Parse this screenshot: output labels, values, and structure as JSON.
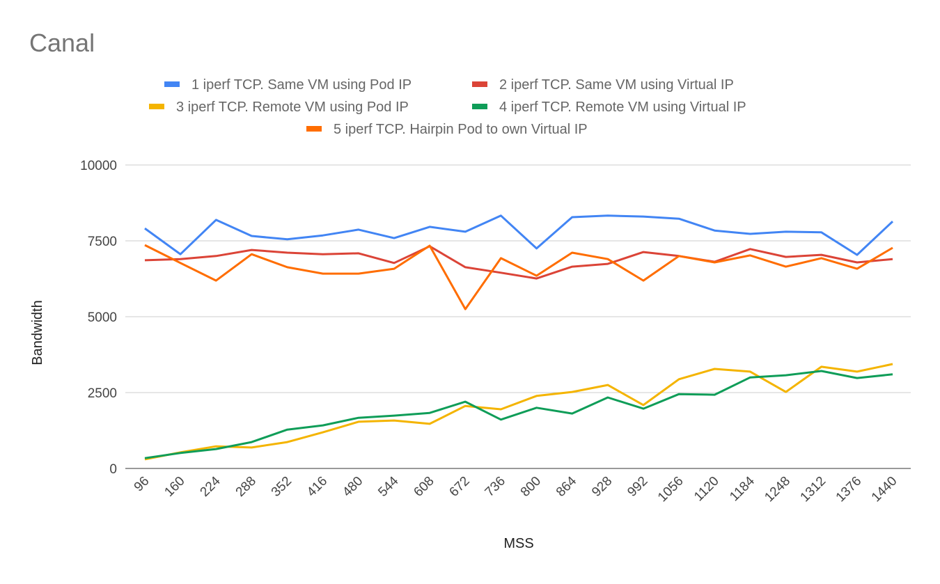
{
  "chart_data": {
    "type": "line",
    "title": "Canal",
    "xlabel": "MSS",
    "ylabel": "Bandwidth",
    "ylim": [
      0,
      10000
    ],
    "yticks": [
      0,
      2500,
      5000,
      7500,
      10000
    ],
    "grid": true,
    "legend_position": "top",
    "x": [
      96,
      160,
      224,
      288,
      352,
      416,
      480,
      544,
      608,
      672,
      736,
      800,
      864,
      928,
      992,
      1056,
      1120,
      1184,
      1248,
      1312,
      1376,
      1440
    ],
    "series": [
      {
        "name": "1 iperf TCP. Same VM using Pod IP",
        "color": "#4285F4",
        "values": [
          7910,
          7060,
          8190,
          7660,
          7550,
          7680,
          7870,
          7590,
          7960,
          7800,
          8330,
          7250,
          8280,
          8330,
          8300,
          8230,
          7840,
          7730,
          7800,
          7780,
          7040,
          8140
        ]
      },
      {
        "name": "2 iperf TCP. Same VM using Virtual IP",
        "color": "#DB4437",
        "values": [
          6860,
          6900,
          7000,
          7200,
          7110,
          7060,
          7090,
          6770,
          7320,
          6630,
          6450,
          6260,
          6650,
          6740,
          7130,
          7000,
          6810,
          7230,
          6970,
          7040,
          6790,
          6900
        ]
      },
      {
        "name": "3 iperf TCP. Remote VM using Pod IP",
        "color": "#F4B400",
        "values": [
          300,
          530,
          730,
          690,
          870,
          1190,
          1540,
          1580,
          1470,
          2060,
          1950,
          2390,
          2520,
          2750,
          2090,
          2940,
          3280,
          3190,
          2520,
          3350,
          3190,
          3440
        ]
      },
      {
        "name": "4 iperf TCP. Remote VM using Virtual IP",
        "color": "#0F9D58",
        "values": [
          340,
          510,
          640,
          870,
          1280,
          1420,
          1670,
          1740,
          1830,
          2200,
          1610,
          2000,
          1810,
          2340,
          1970,
          2450,
          2430,
          3000,
          3070,
          3210,
          2980,
          3100
        ]
      },
      {
        "name": "5 iperf TCP. Hairpin Pod to own Virtual IP",
        "color": "#FF6D00",
        "values": [
          7360,
          6770,
          6190,
          7060,
          6630,
          6420,
          6420,
          6580,
          7340,
          5250,
          6930,
          6350,
          7110,
          6900,
          6190,
          7000,
          6790,
          7020,
          6650,
          6930,
          6580,
          7270
        ]
      }
    ]
  }
}
